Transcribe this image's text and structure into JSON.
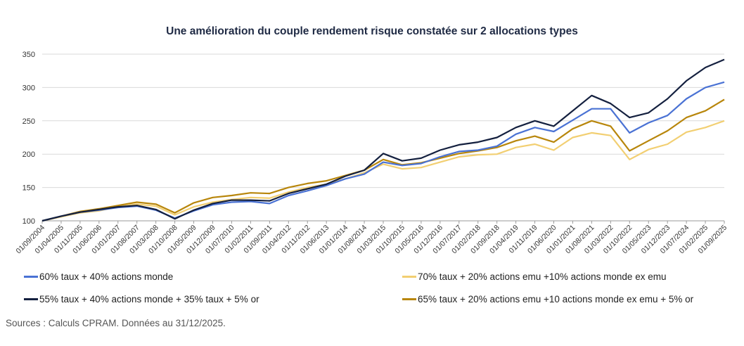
{
  "chart_data": {
    "type": "line",
    "title": "Une amélioration du couple rendement risque constatée sur 2 allocations types",
    "xlabel": "",
    "ylabel": "",
    "ylim": [
      100,
      350
    ],
    "yticks": [
      100,
      150,
      200,
      250,
      300,
      350
    ],
    "grid": true,
    "legend_position": "bottom",
    "x": [
      "01/09/2004",
      "01/04/2005",
      "01/11/2005",
      "01/06/2006",
      "01/01/2007",
      "01/08/2007",
      "01/03/2008",
      "01/10/2008",
      "01/05/2009",
      "01/12/2009",
      "01/07/2010",
      "01/02/2011",
      "01/09/2011",
      "01/04/2012",
      "01/11/2012",
      "01/06/2013",
      "01/01/2014",
      "01/08/2014",
      "01/03/2015",
      "01/10/2015",
      "01/05/2016",
      "01/12/2016",
      "01/07/2017",
      "01/02/2018",
      "01/09/2018",
      "01/04/2019",
      "01/11/2019",
      "01/06/2020",
      "01/01/2021",
      "01/08/2021",
      "01/03/2022",
      "01/10/2022",
      "01/05/2023",
      "01/12/2023",
      "01/07/2024",
      "01/02/2025",
      "01/09/2025"
    ],
    "series": [
      {
        "name": "60% taux + 40% actions monde",
        "color": "#4a72d4",
        "values": [
          100,
          107,
          113,
          116,
          120,
          122,
          116,
          104,
          115,
          124,
          128,
          129,
          126,
          138,
          145,
          153,
          163,
          170,
          188,
          183,
          186,
          196,
          204,
          206,
          212,
          230,
          240,
          234,
          251,
          268,
          268,
          232,
          247,
          258,
          283,
          300,
          308
        ]
      },
      {
        "name": "55% taux + 40% actions monde + 35% taux + 5% or",
        "color": "#14203f",
        "values": [
          100,
          107,
          113,
          117,
          121,
          123,
          117,
          103,
          116,
          126,
          131,
          131,
          130,
          141,
          148,
          155,
          167,
          176,
          201,
          190,
          194,
          206,
          214,
          218,
          225,
          240,
          250,
          242,
          265,
          288,
          276,
          255,
          262,
          283,
          310,
          330,
          342
        ]
      },
      {
        "name": "70%  taux + 20% actions emu +10% actions monde ex emu",
        "color": "#f2cf72",
        "values": [
          100,
          106,
          112,
          115,
          121,
          125,
          122,
          109,
          121,
          128,
          132,
          135,
          134,
          143,
          150,
          155,
          163,
          172,
          185,
          178,
          180,
          188,
          196,
          199,
          200,
          210,
          215,
          206,
          225,
          232,
          228,
          192,
          207,
          215,
          233,
          240,
          250
        ]
      },
      {
        "name": "65% taux + 20% actions emu +10 actions monde ex emu + 5% or",
        "color": "#b8860b",
        "values": [
          100,
          107,
          114,
          118,
          123,
          128,
          125,
          112,
          127,
          135,
          138,
          142,
          141,
          150,
          156,
          160,
          168,
          176,
          192,
          184,
          187,
          194,
          201,
          205,
          210,
          220,
          227,
          218,
          238,
          250,
          242,
          205,
          220,
          235,
          255,
          265,
          282
        ]
      }
    ]
  },
  "legend": [
    {
      "label": "60% taux + 40% actions monde",
      "color": "#4a72d4"
    },
    {
      "label": "70%  taux + 20% actions emu +10% actions monde ex emu",
      "color": "#f2cf72"
    },
    {
      "label": "55% taux + 40% actions monde + 35% taux + 5% or",
      "color": "#14203f"
    },
    {
      "label": "65% taux + 20% actions emu +10 actions monde ex emu + 5% or",
      "color": "#b8860b"
    }
  ],
  "source": "Sources : Calculs CPRAM. Données au 31/12/2025."
}
